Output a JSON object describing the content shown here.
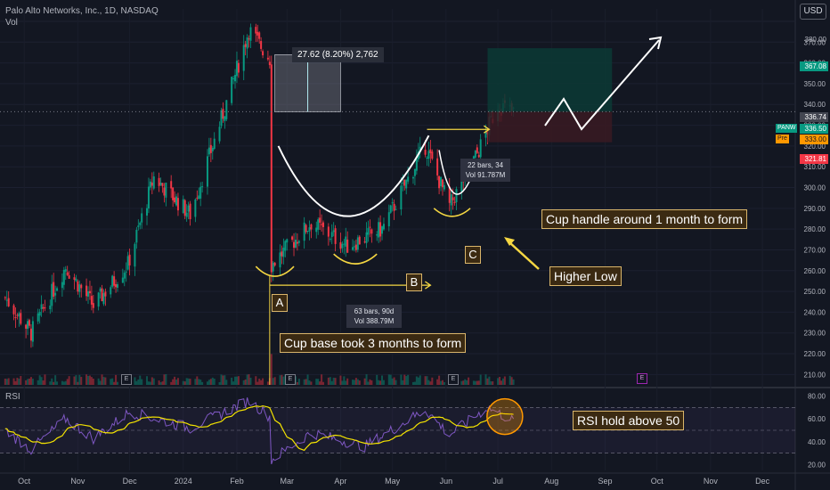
{
  "header": {
    "title": "Palo Alto Networks, Inc., 1D, NASDAQ",
    "volume_label": "Vol",
    "currency": "USD"
  },
  "chart_data": {
    "type": "candlestick",
    "title": "Palo Alto Networks, Inc., 1D, NASDAQ",
    "x_ticks": [
      "Oct",
      "Nov",
      "Dec",
      "2024",
      "Feb",
      "Mar",
      "Apr",
      "May",
      "Jun",
      "Jul",
      "Aug",
      "Sep",
      "Oct",
      "Nov",
      "Dec"
    ],
    "price_ticks": [
      210,
      220,
      230,
      240,
      250,
      260,
      270,
      280,
      290,
      300,
      310,
      320,
      330,
      340,
      350,
      360,
      370,
      380
    ],
    "ylim": [
      205,
      386
    ],
    "price_series": {
      "name": "PANW",
      "approx_close_path": [
        {
          "t": "2023-09-20",
          "close": 247
        },
        {
          "t": "2023-10-05",
          "close": 230
        },
        {
          "t": "2023-10-25",
          "close": 262
        },
        {
          "t": "2023-11-10",
          "close": 243
        },
        {
          "t": "2023-11-30",
          "close": 263
        },
        {
          "t": "2023-12-15",
          "close": 305
        },
        {
          "t": "2024-01-05",
          "close": 287
        },
        {
          "t": "2024-01-25",
          "close": 338
        },
        {
          "t": "2024-02-08",
          "close": 376
        },
        {
          "t": "2024-02-20",
          "close": 362
        },
        {
          "t": "2024-02-21",
          "close": 263
        },
        {
          "t": "2024-03-15",
          "close": 283
        },
        {
          "t": "2024-04-05",
          "close": 272
        },
        {
          "t": "2024-04-25",
          "close": 280
        },
        {
          "t": "2024-05-20",
          "close": 320
        },
        {
          "t": "2024-06-03",
          "close": 291
        },
        {
          "t": "2024-06-20",
          "close": 318
        },
        {
          "t": "2024-07-01",
          "close": 340
        },
        {
          "t": "2024-07-10",
          "close": 336
        }
      ]
    },
    "price_labels": [
      {
        "label": "",
        "value": "380.00"
      },
      {
        "label": "",
        "value": "367.08"
      },
      {
        "label": "",
        "value": "336.74"
      },
      {
        "label": "PANW",
        "value": "336.50"
      },
      {
        "label": "Pre",
        "value": "333.00"
      },
      {
        "label": "",
        "value": "321.81"
      }
    ],
    "rsi": {
      "label": "RSI",
      "ticks": [
        20,
        40,
        60,
        80
      ],
      "ylim": [
        15,
        85
      ],
      "levels": [
        70,
        50,
        30
      ],
      "approx_path": [
        {
          "t": "2023-09-20",
          "v": 50
        },
        {
          "t": "2023-10-05",
          "v": 33
        },
        {
          "t": "2023-10-25",
          "v": 60
        },
        {
          "t": "2023-11-10",
          "v": 43
        },
        {
          "t": "2023-12-01",
          "v": 66
        },
        {
          "t": "2024-01-05",
          "v": 52
        },
        {
          "t": "2024-02-08",
          "v": 76
        },
        {
          "t": "2024-02-20",
          "v": 62
        },
        {
          "t": "2024-02-21",
          "v": 24
        },
        {
          "t": "2024-03-15",
          "v": 48
        },
        {
          "t": "2024-04-15",
          "v": 36
        },
        {
          "t": "2024-05-20",
          "v": 68
        },
        {
          "t": "2024-06-03",
          "v": 46
        },
        {
          "t": "2024-06-25",
          "v": 70
        },
        {
          "t": "2024-07-10",
          "v": 58
        }
      ]
    },
    "measure_box": {
      "text": "27.62 (8.20%) 2,762"
    },
    "range_info_1": {
      "line1": "63 bars, 90d",
      "line2": "Vol 388.79M"
    },
    "range_info_2": {
      "line1": "22 bars, 34",
      "line2": "Vol 91.787M"
    },
    "annotations": {
      "a": "A",
      "b": "B",
      "c": "C",
      "cup_base": "Cup base took 3 months to form",
      "cup_handle": "Cup handle around 1 month to form",
      "higher_low": "Higher Low",
      "rsi_note": "RSI hold above 50"
    },
    "earnings_marker": "E"
  },
  "colors": {
    "background": "#131722",
    "up": "#089981",
    "down": "#f23645",
    "rsi_line": "#7e57c2",
    "rsi_ma": "#f5e400",
    "annotation": "#f5d742",
    "target_zone": "#0c3a35",
    "stop_zone": "#3a1a22"
  }
}
